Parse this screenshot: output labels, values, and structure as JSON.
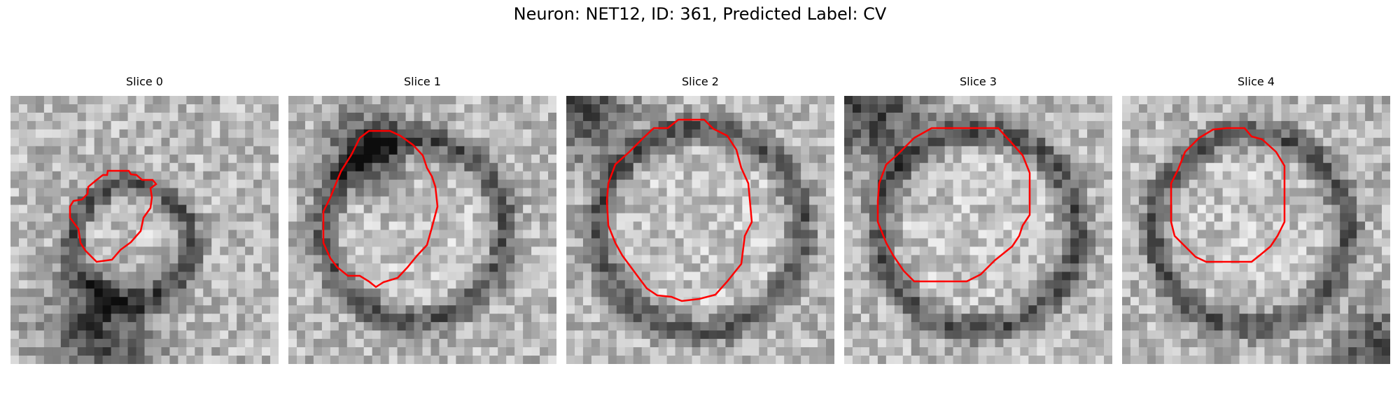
{
  "figure": {
    "title": "Neuron: NET12, ID: 361, Predicted Label: CV"
  },
  "slices": [
    {
      "label": "Slice 0"
    },
    {
      "label": "Slice 1"
    },
    {
      "label": "Slice 2"
    },
    {
      "label": "Slice 3"
    },
    {
      "label": "Slice 4"
    }
  ],
  "colors": {
    "contour": "#ff0000",
    "background": "#ffffff"
  }
}
